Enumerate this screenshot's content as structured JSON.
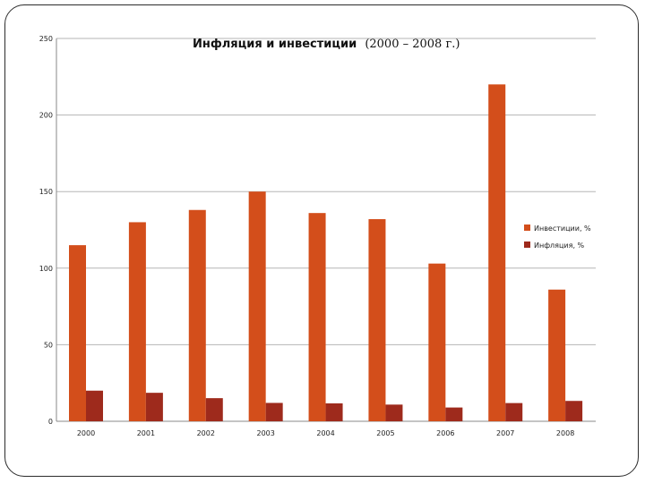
{
  "chart_data": {
    "type": "bar",
    "title": "Инфляция и инвестиции",
    "title_years": "(2000 – 2008 г.)",
    "categories": [
      "2000",
      "2001",
      "2002",
      "2003",
      "2004",
      "2005",
      "2006",
      "2007",
      "2008"
    ],
    "series": [
      {
        "name": "Инвестиции, %",
        "color": "#D34E1B",
        "values": [
          115,
          130,
          138,
          150,
          136,
          132,
          103,
          220,
          86
        ]
      },
      {
        "name": "Инфляция, %",
        "color": "#9E2A1C",
        "values": [
          20,
          18.6,
          15.1,
          12,
          11.7,
          10.9,
          9,
          11.9,
          13.3
        ]
      }
    ],
    "ylim": [
      0,
      250
    ],
    "yticks": [
      "0",
      "50",
      "100",
      "150",
      "200",
      "250"
    ],
    "grid": true,
    "legend_position": "right"
  }
}
